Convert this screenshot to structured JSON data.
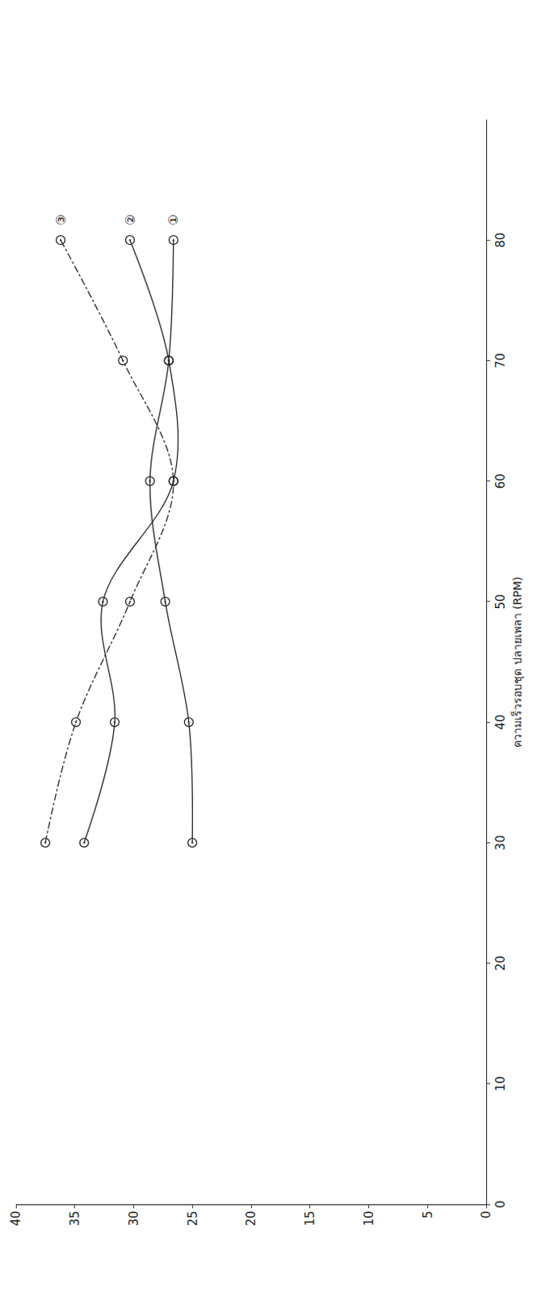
{
  "chart_data": {
    "type": "line",
    "x_label": "ความเร็วรอบชุด ปลายเพลา (RPM)",
    "x": [
      30,
      40,
      50,
      60,
      70,
      80
    ],
    "series": [
      {
        "name": "①",
        "color": "#222222",
        "line_style": "solid",
        "marker": "circle-open-dot",
        "values": [
          25.0,
          25.3,
          27.3,
          28.6,
          27.0,
          26.6
        ]
      },
      {
        "name": "②",
        "color": "#222222",
        "line_style": "solid",
        "marker": "circle-open-dot",
        "values": [
          34.2,
          31.6,
          32.6,
          26.6,
          27.0,
          30.3
        ]
      },
      {
        "name": "③",
        "color": "#222222",
        "line_style": "dashdot",
        "marker": "circle-open-dot",
        "values": [
          37.5,
          34.9,
          30.3,
          26.6,
          30.9,
          36.2
        ]
      }
    ],
    "xlim": [
      0,
      90
    ],
    "xticks": [
      0,
      10,
      20,
      30,
      40,
      50,
      60,
      70,
      80
    ],
    "ylim": [
      0,
      40
    ],
    "yticks": [
      0,
      5,
      10,
      15,
      20,
      25,
      30,
      35,
      40
    ],
    "grid": false
  }
}
